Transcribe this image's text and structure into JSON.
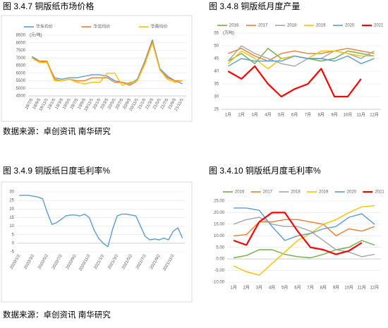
{
  "chart_data": [
    {
      "type": "line",
      "title": "图 3.4.7 铜版纸市场价格",
      "unit": "(元/吨)",
      "legend": "top",
      "grid": true,
      "categories": [
        "18/7/5",
        "18/9/5",
        "18/11/5",
        "19/1/5",
        "19/3/5",
        "19/5/5",
        "19/7/5",
        "19/9/5",
        "19/11/5",
        "20/1/5",
        "20/3/5",
        "20/5/5",
        "20/7/5",
        "20/9/5",
        "20/11/5",
        "21/1/5",
        "21/3/5",
        "21/5/5",
        "21/7/5",
        "21/9/5",
        "21/11/5"
      ],
      "ylim": [
        4500,
        8500
      ],
      "yticks": [
        4500,
        5000,
        5500,
        6000,
        6500,
        7000,
        7500,
        8000,
        8500
      ],
      "series": [
        {
          "name": "华东均价",
          "color": "#5b9bd5",
          "values": [
            7100,
            6800,
            6700,
            5700,
            5600,
            5700,
            5700,
            5800,
            5900,
            5900,
            5800,
            5500,
            5400,
            5300,
            5600,
            6800,
            8200,
            6300,
            5800,
            5500,
            5300
          ]
        },
        {
          "name": "华北均价",
          "color": "#ed7d31",
          "values": [
            7000,
            6800,
            6800,
            5600,
            5500,
            5600,
            5500,
            5500,
            5700,
            5700,
            5700,
            5400,
            5400,
            5200,
            5500,
            6700,
            8100,
            6200,
            5700,
            5500,
            5500
          ]
        },
        {
          "name": "华南均价",
          "color": "#ffc000",
          "values": [
            7000,
            6700,
            6700,
            5500,
            5500,
            5600,
            5400,
            5300,
            5400,
            5400,
            6000,
            6000,
            5200,
            5400,
            5500,
            6600,
            8000,
            6200,
            5600,
            5400,
            5500
          ]
        }
      ]
    },
    {
      "type": "line",
      "title": "图 3.4.8 铜版纸月度产量",
      "unit": "(万吨)",
      "legend": "top",
      "grid": true,
      "categories": [
        "1月",
        "2月",
        "3月",
        "4月",
        "5月",
        "6月",
        "7月",
        "8月",
        "9月",
        "10月",
        "11月",
        "12月"
      ],
      "ylim": [
        25,
        55
      ],
      "yticks": [
        25,
        30,
        35,
        40,
        45,
        50,
        55
      ],
      "series": [
        {
          "name": "2016",
          "color": "#70ad47",
          "values": [
            44,
            47,
            43,
            49,
            45,
            46,
            45,
            44,
            45,
            48,
            47,
            46
          ]
        },
        {
          "name": "2017",
          "color": "#ed7d31",
          "values": [
            47,
            49,
            46,
            44,
            47,
            48,
            47,
            47,
            48,
            49,
            48,
            47
          ]
        },
        {
          "name": "2018",
          "color": "#a5a5a5",
          "values": [
            44,
            50,
            47,
            45,
            43,
            42,
            45,
            45,
            48,
            47,
            45,
            48
          ]
        },
        {
          "name": "2019",
          "color": "#ffc000",
          "values": [
            43,
            48,
            45,
            41,
            45,
            46,
            45,
            48,
            48,
            47,
            46,
            46
          ]
        },
        {
          "name": "2020",
          "color": "#5b9bd5",
          "values": [
            42,
            45,
            44,
            44,
            44,
            46,
            45,
            45,
            44,
            46,
            43,
            45
          ]
        },
        {
          "name": "2021",
          "color": "#ff0000",
          "values": [
            40,
            37,
            42,
            35,
            30,
            33,
            35,
            41,
            30,
            30,
            37,
            null
          ]
        }
      ]
    },
    {
      "type": "line",
      "title": "图 3.4.9 铜版纸日度毛利率%",
      "grid": true,
      "categories": [
        "2020/1/2",
        null,
        null,
        "2020/3/2",
        null,
        null,
        "2020/5/2",
        null,
        null,
        "2020/7/2",
        null,
        null,
        "2020/9/2",
        null,
        null,
        "2020/11/2",
        null,
        null,
        "2021/1/2",
        null,
        null,
        "2021/3/2",
        null,
        null,
        "2021/5/2",
        null,
        null,
        "2021/7/2",
        null,
        null,
        "2021/9/2",
        null,
        null,
        "2021/11/2",
        null,
        null
      ],
      "ylim": [
        -5,
        30
      ],
      "yticks": [
        -5,
        0,
        5,
        10,
        15,
        20,
        25,
        30
      ],
      "series": [
        {
          "color": "#5b9bd5",
          "values": [
            28,
            28,
            28,
            27.5,
            27,
            26,
            18,
            11,
            12,
            14,
            16,
            16.5,
            16.5,
            16,
            17,
            15,
            8,
            3,
            0,
            -2,
            8,
            16,
            17,
            17,
            16.5,
            16,
            10,
            4,
            2,
            2.5,
            2,
            3,
            2,
            7,
            9,
            3
          ]
        }
      ]
    },
    {
      "type": "line",
      "title": "图 3.4.10 铜版纸月度毛利率%",
      "legend": "top",
      "grid": true,
      "categories": [
        "1月",
        "2月",
        "3月",
        "4月",
        "5月",
        "6月",
        "7月",
        "8月",
        "9月",
        "10月",
        "11月",
        "12月"
      ],
      "ylim": [
        -10,
        25
      ],
      "yticks": [
        {
          "value": -10,
          "label": "-10.00"
        },
        {
          "value": -5,
          "label": "-5.00"
        },
        {
          "value": 0,
          "label": "0.00"
        },
        {
          "value": 5,
          "label": "5.00"
        },
        {
          "value": 10,
          "label": "10.00"
        },
        {
          "value": 15,
          "label": "15.00"
        },
        {
          "value": 20,
          "label": "20.00"
        },
        {
          "value": 25,
          "label": "25.00"
        }
      ],
      "series": [
        {
          "name": "2016",
          "color": "#70ad47",
          "values": [
            0.5,
            1.5,
            4,
            4,
            2,
            1,
            0.5,
            2,
            4,
            5,
            8,
            6
          ]
        },
        {
          "name": "2017",
          "color": "#ed7d31",
          "values": [
            10,
            10.5,
            16,
            16,
            17,
            17,
            16,
            15,
            10,
            13,
            12,
            14
          ]
        },
        {
          "name": "2018",
          "color": "#a5a5a5",
          "values": [
            15,
            17,
            18,
            15,
            14,
            14,
            12,
            8,
            4,
            3,
            1,
            2
          ]
        },
        {
          "name": "2019",
          "color": "#ffc000",
          "values": [
            -3,
            -5.5,
            -7,
            -2,
            3,
            8,
            11,
            15,
            17,
            20,
            22.5,
            23
          ]
        },
        {
          "name": "2020",
          "color": "#5b9bd5",
          "values": [
            22,
            22,
            21,
            14,
            8,
            10,
            11,
            13,
            14,
            18,
            19.5,
            15
          ]
        },
        {
          "name": "2021",
          "color": "#ff0000",
          "values": [
            8,
            6,
            16,
            20,
            20,
            12,
            5,
            4,
            2,
            3.5,
            7,
            null
          ]
        }
      ]
    }
  ],
  "sources": [
    "数据来源：卓创资讯 南华研究",
    "数据来源：卓创资讯 南华研究"
  ]
}
